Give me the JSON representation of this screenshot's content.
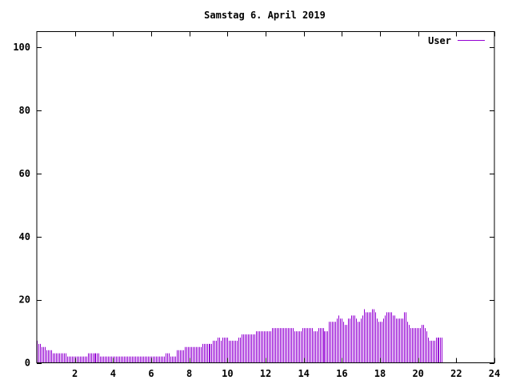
{
  "chart_data": {
    "type": "bar",
    "title": "Samstag 6. April 2019",
    "xlabel": "",
    "ylabel": "",
    "xlim": [
      0,
      24
    ],
    "ylim": [
      0,
      105
    ],
    "x_ticks": [
      2,
      4,
      6,
      8,
      10,
      12,
      14,
      16,
      18,
      20,
      22,
      24
    ],
    "y_ticks": [
      0,
      20,
      40,
      60,
      80,
      100
    ],
    "grid": false,
    "legend_position": "top-right",
    "bar_color": "#9400d3",
    "series": [
      {
        "name": "User",
        "interval_minutes": 5,
        "values": [
          7,
          6,
          6,
          5,
          5,
          5,
          4,
          4,
          4,
          4,
          3,
          3,
          3,
          3,
          3,
          3,
          3,
          3,
          3,
          2,
          2,
          2,
          2,
          2,
          2,
          2,
          2,
          2,
          2,
          2,
          2,
          2,
          3,
          3,
          3,
          3,
          3,
          3,
          3,
          3,
          2,
          2,
          2,
          2,
          2,
          2,
          2,
          2,
          2,
          2,
          2,
          2,
          2,
          2,
          2,
          2,
          2,
          2,
          2,
          2,
          2,
          2,
          2,
          2,
          2,
          2,
          2,
          2,
          2,
          2,
          2,
          2,
          2,
          2,
          2,
          2,
          2,
          2,
          2,
          2,
          2,
          3,
          3,
          3,
          2,
          2,
          2,
          2,
          4,
          4,
          4,
          4,
          4,
          5,
          5,
          5,
          5,
          5,
          5,
          5,
          5,
          5,
          5,
          5,
          6,
          6,
          6,
          6,
          6,
          6,
          6,
          7,
          7,
          7,
          8,
          8,
          7,
          8,
          8,
          8,
          8,
          7,
          7,
          7,
          7,
          7,
          7,
          8,
          8,
          9,
          9,
          9,
          9,
          9,
          9,
          9,
          9,
          9,
          10,
          10,
          10,
          10,
          10,
          10,
          10,
          10,
          10,
          10,
          11,
          11,
          11,
          11,
          11,
          11,
          11,
          11,
          11,
          11,
          11,
          11,
          11,
          11,
          10,
          10,
          10,
          10,
          10,
          11,
          11,
          11,
          11,
          11,
          11,
          11,
          10,
          10,
          10,
          11,
          11,
          11,
          11,
          10,
          10,
          10,
          13,
          13,
          13,
          13,
          13,
          14,
          15,
          14,
          14,
          13,
          12,
          12,
          14,
          14,
          15,
          15,
          15,
          14,
          13,
          13,
          14,
          15,
          17,
          16,
          16,
          16,
          16,
          17,
          17,
          16,
          14,
          13,
          13,
          13,
          14,
          15,
          16,
          16,
          16,
          16,
          15,
          15,
          14,
          14,
          14,
          14,
          14,
          16,
          16,
          13,
          12,
          11,
          11,
          11,
          11,
          11,
          11,
          11,
          12,
          12,
          11,
          10,
          8,
          7,
          7,
          7,
          7,
          8,
          8,
          8,
          8,
          8
        ]
      }
    ]
  }
}
